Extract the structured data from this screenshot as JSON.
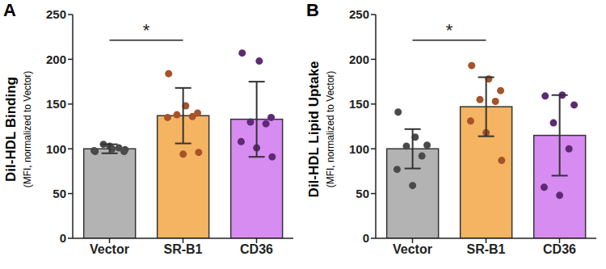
{
  "chart_data": [
    {
      "type": "bar",
      "title": "A",
      "ylabel": "DiI-HDL Binding",
      "ylabel_note": "(MFI, normalized to Vector)",
      "categories": [
        "Vector",
        "SR-B1",
        "CD36"
      ],
      "values": [
        100,
        137,
        133
      ],
      "error": [
        5,
        31,
        42
      ],
      "points": [
        [
          97,
          100,
          97,
          105,
          101,
          98,
          103,
          99
        ],
        [
          184,
          148,
          140,
          138,
          136,
          135,
          94,
          96
        ],
        [
          207,
          198,
          135,
          130,
          128,
          108,
          101,
          91
        ]
      ],
      "colors": [
        "#b3b3b3",
        "#f5b461",
        "#d78cf2"
      ],
      "ylim": [
        0,
        250
      ],
      "yticks": [
        0,
        50,
        100,
        150,
        200,
        250
      ],
      "annotations": [
        {
          "text": "*",
          "from": "Vector",
          "to": "SR-B1"
        }
      ]
    },
    {
      "type": "bar",
      "title": "B",
      "ylabel": "DiI-HDL Lipid Uptake",
      "ylabel_note": "(MFI, normalized to Vector)",
      "categories": [
        "Vector",
        "SR-B1",
        "CD36"
      ],
      "values": [
        100,
        147,
        115
      ],
      "error": [
        22,
        33,
        45
      ],
      "points": [
        [
          141,
          113,
          104,
          103,
          92,
          77,
          59
        ],
        [
          193,
          178,
          165,
          155,
          153,
          131,
          118,
          87
        ],
        [
          159,
          160,
          149,
          129,
          100,
          57,
          48
        ]
      ],
      "colors": [
        "#b3b3b3",
        "#f5b461",
        "#d78cf2"
      ],
      "ylim": [
        0,
        250
      ],
      "yticks": [
        0,
        50,
        100,
        150,
        200,
        250
      ],
      "annotations": [
        {
          "text": "*",
          "from": "Vector",
          "to": "SR-B1"
        }
      ]
    }
  ]
}
